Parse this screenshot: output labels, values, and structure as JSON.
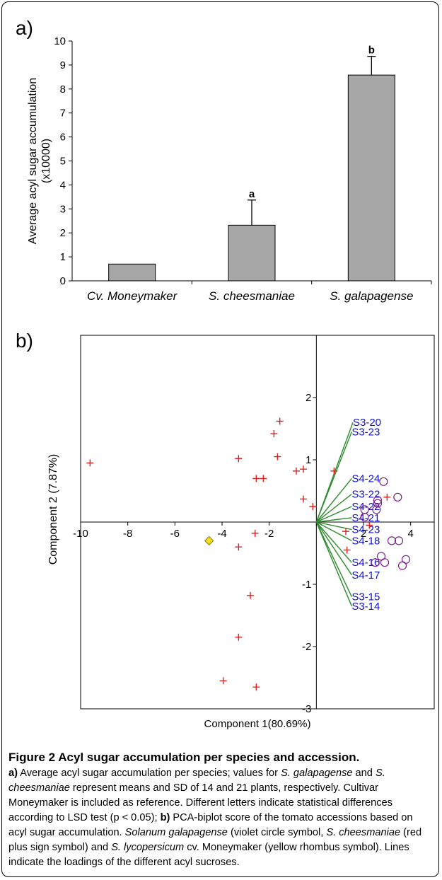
{
  "panels": {
    "a_label": "a)",
    "b_label": "b)"
  },
  "chart_data": [
    {
      "type": "bar",
      "categories": [
        "Cv. Moneymaker",
        "S. cheesmaniae",
        "S. galapagense"
      ],
      "values": [
        0.7,
        2.32,
        8.58
      ],
      "error": [
        0,
        1.05,
        0.78
      ],
      "letters": [
        "",
        "a",
        "b"
      ],
      "ylabel_line1": "Average acyl sugar accumulation",
      "ylabel_line2": "(x10000)",
      "ylim": [
        0,
        10
      ],
      "yticks": [
        "0",
        "1",
        "2",
        "3",
        "4",
        "5",
        "6",
        "7",
        "8",
        "9",
        "10"
      ],
      "bar_color": "#a6a6a6"
    },
    {
      "type": "scatter",
      "xlabel": "Component 1(80.69%)",
      "ylabel": "Component 2 (7.87%)",
      "xlim": [
        -10,
        5
      ],
      "ylim": [
        -3,
        3
      ],
      "xticks": [
        "-10",
        "-8",
        "-6",
        "-4",
        "-2",
        "",
        "2",
        "4"
      ],
      "yticks": [
        "-3",
        "-2",
        "-1",
        "",
        "1",
        "2"
      ],
      "series": [
        {
          "symbol": "plus",
          "color": "#e02020",
          "points": [
            [
              -9.6,
              0.95
            ],
            [
              -1.55,
              1.62
            ],
            [
              -1.8,
              1.42
            ],
            [
              -1.65,
              1.05
            ],
            [
              -3.3,
              1.02
            ],
            [
              -2.55,
              0.7
            ],
            [
              -2.25,
              0.7
            ],
            [
              -0.85,
              0.82
            ],
            [
              -0.55,
              0.85
            ],
            [
              0.75,
              0.82
            ],
            [
              -0.55,
              0.37
            ],
            [
              -0.15,
              0.25
            ],
            [
              -2.6,
              -0.18
            ],
            [
              -3.3,
              -0.4
            ],
            [
              -2.8,
              -1.18
            ],
            [
              -3.3,
              -1.85
            ],
            [
              -3.95,
              -2.55
            ],
            [
              -2.55,
              -2.65
            ],
            [
              3.0,
              0.4
            ],
            [
              2.25,
              -0.05
            ],
            [
              1.25,
              -0.15
            ],
            [
              1.3,
              -0.45
            ]
          ]
        },
        {
          "symbol": "circle",
          "color": "#7a1f8a",
          "points": [
            [
              2.85,
              0.65
            ],
            [
              3.45,
              0.4
            ],
            [
              2.6,
              0.35
            ],
            [
              2.6,
              0.3
            ],
            [
              2.55,
              0.2
            ],
            [
              2.05,
              0.2
            ],
            [
              2.05,
              0.08
            ],
            [
              3.2,
              -0.3
            ],
            [
              3.5,
              -0.3
            ],
            [
              2.75,
              -0.55
            ],
            [
              2.9,
              -0.65
            ],
            [
              2.5,
              -0.65
            ],
            [
              3.8,
              -0.6
            ],
            [
              3.65,
              -0.7
            ]
          ]
        },
        {
          "symbol": "diamond",
          "color": "#f5e020",
          "points": [
            [
              -4.55,
              -0.3
            ]
          ]
        }
      ],
      "loadings": [
        {
          "label": "S3-20",
          "x": 1.55,
          "y": 1.6
        },
        {
          "label": "S3-23",
          "x": 1.5,
          "y": 1.45
        },
        {
          "label": "S4-24",
          "x": 1.5,
          "y": 0.7
        },
        {
          "label": "S3-22",
          "x": 1.5,
          "y": 0.45
        },
        {
          "label": "S4-22",
          "x": 1.5,
          "y": 0.25
        },
        {
          "label": "S4-21",
          "x": 1.5,
          "y": 0.07
        },
        {
          "label": "S4-23",
          "x": 1.5,
          "y": -0.12
        },
        {
          "label": "S4-18",
          "x": 1.5,
          "y": -0.3
        },
        {
          "label": "S4-16",
          "x": 1.5,
          "y": -0.65
        },
        {
          "label": "S4-17",
          "x": 1.5,
          "y": -0.85
        },
        {
          "label": "S3-15",
          "x": 1.5,
          "y": -1.2
        },
        {
          "label": "S3-14",
          "x": 1.5,
          "y": -1.35
        }
      ],
      "loading_color": "#2e8b2e",
      "label_color": "#1010d0"
    }
  ],
  "caption": {
    "title": "Figure 2 Acyl sugar accumulation per species and accession.",
    "a_tag": "a)",
    "a_text_1": " Average acyl sugar accumulation per species; values for ",
    "a_sp1": "S. galapagense",
    "a_text_2": " and ",
    "a_sp2": "S. cheesmaniae",
    "a_text_3": " represent means and SD of 14 and 21 plants, respectively. Cultivar Moneymaker is included as reference. Different letters indicate statistical differences according to LSD test (p < 0.05); ",
    "b_tag": "b)",
    "b_text_1": " PCA-biplot score of the tomato accessions based on acyl sugar accumulation. ",
    "b_sp1": "Solanum galapagense",
    "b_text_2": " (violet circle symbol, ",
    "b_sp2": "S. cheesmaniae",
    "b_text_3": " (red plus sign symbol) and ",
    "b_sp3": "S. lycopersicum",
    "b_text_4": " cv. Moneymaker (yellow rhombus symbol). Lines indicate the loadings of the different acyl sucroses."
  }
}
